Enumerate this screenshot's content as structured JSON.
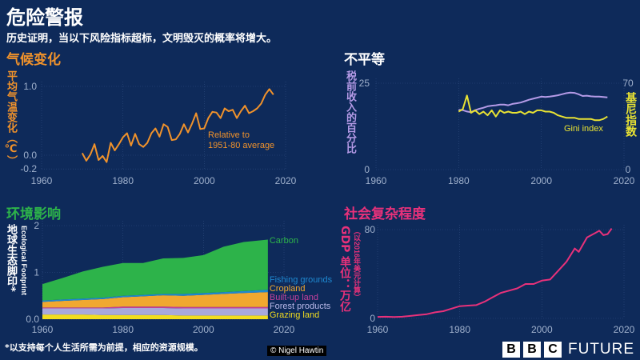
{
  "header": {
    "title": "危险警报",
    "subtitle": "历史证明，当以下风险指标超标，文明毁灭的概率将增大。"
  },
  "footer": {
    "note": "*以支持每个人生活所需为前提，相应的资源规模。",
    "credit": "© Nigel Hawtin",
    "logo_letters": [
      "B",
      "B",
      "C"
    ],
    "logo_word": "FUTURE"
  },
  "colors": {
    "background": "#0e2a5a",
    "climate": "#f0922b",
    "inequality_share": "#b49ae6",
    "inequality_gini": "#e8e233",
    "environment": "#2db34a",
    "complexity": "#e8317a"
  },
  "chart_data": [
    {
      "type": "line",
      "title": "气候变化",
      "ylabel": "平均气温变化（℃）",
      "annotation": [
        "Relative to",
        "1951-80 average"
      ],
      "xlim": [
        1960,
        2020
      ],
      "ylim": [
        -0.2,
        1.0
      ],
      "xticks": [
        "1960",
        "1980",
        "2000",
        "2020"
      ],
      "yticks": [
        "1.0",
        "0.0",
        "-0.2"
      ],
      "grid": true,
      "x": [
        1970,
        1971,
        1972,
        1973,
        1974,
        1975,
        1976,
        1977,
        1978,
        1979,
        1980,
        1981,
        1982,
        1983,
        1984,
        1985,
        1986,
        1987,
        1988,
        1989,
        1990,
        1991,
        1992,
        1993,
        1994,
        1995,
        1996,
        1997,
        1998,
        1999,
        2000,
        2001,
        2002,
        2003,
        2004,
        2005,
        2006,
        2007,
        2008,
        2009,
        2010,
        2011,
        2012,
        2013,
        2014,
        2015,
        2016,
        2017
      ],
      "series": [
        {
          "values": [
            0.03,
            -0.08,
            0.01,
            0.16,
            -0.07,
            -0.01,
            -0.1,
            0.18,
            0.07,
            0.16,
            0.26,
            0.32,
            0.14,
            0.31,
            0.16,
            0.12,
            0.18,
            0.32,
            0.39,
            0.27,
            0.45,
            0.41,
            0.22,
            0.23,
            0.31,
            0.45,
            0.33,
            0.46,
            0.61,
            0.38,
            0.39,
            0.54,
            0.63,
            0.62,
            0.54,
            0.68,
            0.64,
            0.66,
            0.54,
            0.64,
            0.72,
            0.61,
            0.64,
            0.68,
            0.75,
            0.88,
            0.96,
            0.88
          ]
        }
      ]
    },
    {
      "type": "line",
      "title": "不平等",
      "ylabel": "税前收入的百分比",
      "y2label": "基尼指数",
      "xlim": [
        1960,
        2020
      ],
      "ylim": [
        0,
        25
      ],
      "y2lim": [
        0,
        70
      ],
      "xticks": [
        "1960",
        "1980",
        "2000",
        "2020"
      ],
      "yticks": [
        "25",
        "0"
      ],
      "y2ticks": [
        "70",
        "0"
      ],
      "grid": true,
      "x": [
        1980,
        1981,
        1982,
        1983,
        1984,
        1985,
        1986,
        1987,
        1988,
        1989,
        1990,
        1991,
        1992,
        1993,
        1994,
        1995,
        1996,
        1997,
        1998,
        1999,
        2000,
        2001,
        2002,
        2003,
        2004,
        2005,
        2006,
        2007,
        2008,
        2009,
        2010,
        2011,
        2012,
        2013,
        2014,
        2015,
        2016
      ],
      "series": [
        {
          "axis": "left",
          "values": [
            17.3,
            17.2,
            16.8,
            16.6,
            17.2,
            17.6,
            17.9,
            18.3,
            18.5,
            18.6,
            18.8,
            18.8,
            18.6,
            19.0,
            19.2,
            19.4,
            19.8,
            20.2,
            20.5,
            20.8,
            21.1,
            21.0,
            21.1,
            21.3,
            21.5,
            21.8,
            22.1,
            22.3,
            22.2,
            21.8,
            21.3,
            21.4,
            21.2,
            21.1,
            21.1,
            21.0,
            20.9
          ]
        },
        {
          "name": "Gini index",
          "axis": "right",
          "values": [
            47,
            49,
            60,
            46,
            48,
            45,
            47,
            44,
            48,
            43,
            48,
            46,
            47,
            46,
            46,
            47,
            45,
            47,
            46,
            48,
            48,
            47,
            47,
            46,
            44,
            43,
            42,
            42,
            42,
            41,
            41,
            41,
            41,
            40,
            40,
            41,
            43
          ]
        }
      ]
    },
    {
      "type": "area",
      "stacked": true,
      "title": "环境影响",
      "ylabel": "地球生态脚印*",
      "ylabel2": "Ecological Footprint",
      "xlim": [
        1960,
        2020
      ],
      "ylim": [
        0,
        2
      ],
      "xticks": [
        "1960",
        "1980",
        "2000",
        "2020"
      ],
      "yticks": [
        "2",
        "1",
        "0.0"
      ],
      "grid": true,
      "x": [
        1960,
        1965,
        1970,
        1975,
        1980,
        1985,
        1990,
        1995,
        2000,
        2005,
        2010,
        2016
      ],
      "series": [
        {
          "name": "Grazing land",
          "color": "#f2dd1f",
          "values": [
            0.1,
            0.1,
            0.1,
            0.09,
            0.09,
            0.09,
            0.09,
            0.08,
            0.08,
            0.08,
            0.08,
            0.08
          ]
        },
        {
          "name": "Forest products",
          "color": "#a9a9dc",
          "values": [
            0.13,
            0.13,
            0.13,
            0.14,
            0.15,
            0.15,
            0.15,
            0.15,
            0.15,
            0.15,
            0.15,
            0.15
          ]
        },
        {
          "name": "Built-up land",
          "color": "#c0409a",
          "values": [
            0.02,
            0.02,
            0.02,
            0.02,
            0.03,
            0.03,
            0.03,
            0.03,
            0.03,
            0.03,
            0.03,
            0.03
          ]
        },
        {
          "name": "Cropland",
          "color": "#f0a830",
          "values": [
            0.12,
            0.14,
            0.16,
            0.18,
            0.2,
            0.22,
            0.24,
            0.24,
            0.26,
            0.28,
            0.3,
            0.32
          ]
        },
        {
          "name": "Fishing grounds",
          "color": "#1e88d0",
          "values": [
            0.03,
            0.03,
            0.03,
            0.03,
            0.03,
            0.03,
            0.03,
            0.04,
            0.04,
            0.04,
            0.04,
            0.05
          ]
        },
        {
          "name": "Carbon",
          "color": "#2db34a",
          "values": [
            0.35,
            0.46,
            0.58,
            0.66,
            0.7,
            0.68,
            0.76,
            0.77,
            0.81,
            0.97,
            1.05,
            1.07
          ]
        }
      ]
    },
    {
      "type": "line",
      "title": "社会复杂程度",
      "ylabel": "GDP 单位：万亿",
      "ylabel2": "（以2016年美元计算）",
      "xlim": [
        1960,
        2020
      ],
      "ylim": [
        0,
        80
      ],
      "xticks": [
        "1960",
        "1980",
        "2000",
        "2020"
      ],
      "yticks": [
        "80",
        "0"
      ],
      "grid": true,
      "x": [
        1960,
        1962,
        1964,
        1966,
        1968,
        1970,
        1972,
        1974,
        1976,
        1978,
        1980,
        1982,
        1984,
        1986,
        1988,
        1990,
        1992,
        1994,
        1996,
        1998,
        2000,
        2002,
        2004,
        2006,
        2008,
        2009,
        2011,
        2013,
        2014,
        2015,
        2016,
        2017
      ],
      "series": [
        {
          "values": [
            1.4,
            1.5,
            1.2,
            1.5,
            2.2,
            3,
            3.8,
            5.5,
            6.5,
            8.8,
            11,
            11.5,
            12,
            15,
            19,
            23,
            25,
            27,
            31,
            31,
            34,
            35,
            43,
            51,
            63,
            60,
            73,
            77,
            79,
            75,
            76,
            81
          ]
        }
      ]
    }
  ]
}
